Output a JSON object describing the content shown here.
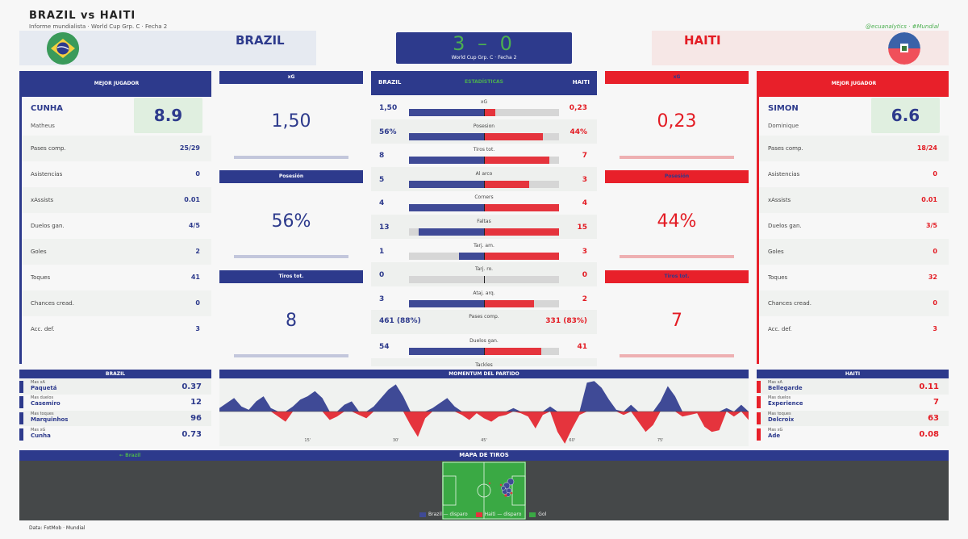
{
  "header": {
    "title": "BRAZIL  vs  HAITI",
    "subtitle": "Informe mundialista  ·  World Cup Grp. C  ·  Fecha 2",
    "handle": "@ecuanalytics · #Mundial"
  },
  "home": {
    "name": "BRAZIL",
    "color": "#2d3a8c"
  },
  "away": {
    "name": "HAITI",
    "color": "#e31b23"
  },
  "score": {
    "text": "3 – 0",
    "subtitle": "World Cup Grp. C  ·  Fecha 2"
  },
  "best_home": {
    "head": "MEJOR JUGADOR",
    "last": "CUNHA",
    "first": "Matheus",
    "rating": "8.9",
    "rows": [
      {
        "label": "Pases comp.",
        "value": "25/29"
      },
      {
        "label": "Asistencias",
        "value": "0"
      },
      {
        "label": "xAssists",
        "value": "0.01"
      },
      {
        "label": "Duelos gan.",
        "value": "4/5"
      },
      {
        "label": "Goles",
        "value": "2"
      },
      {
        "label": "Toques",
        "value": "41"
      },
      {
        "label": "Chances cread.",
        "value": "0"
      },
      {
        "label": "Acc. def.",
        "value": "3"
      }
    ]
  },
  "best_away": {
    "head": "MEJOR JUGADOR",
    "last": "SIMON",
    "first": "Dominique",
    "rating": "6.6",
    "rows": [
      {
        "label": "Pases comp.",
        "value": "18/24"
      },
      {
        "label": "Asistencias",
        "value": "0"
      },
      {
        "label": "xAssists",
        "value": "0.01"
      },
      {
        "label": "Duelos gan.",
        "value": "3/5"
      },
      {
        "label": "Goles",
        "value": "0"
      },
      {
        "label": "Toques",
        "value": "32"
      },
      {
        "label": "Chances cread.",
        "value": "0"
      },
      {
        "label": "Acc. def.",
        "value": "3"
      }
    ]
  },
  "metrics_home": [
    {
      "head": "xG",
      "value": "1,50"
    },
    {
      "head": "Posesión",
      "value": "56%"
    },
    {
      "head": "Tiros tot.",
      "value": "8"
    }
  ],
  "metrics_away": [
    {
      "head": "xG",
      "value": "0,23"
    },
    {
      "head": "Posesión",
      "value": "44%"
    },
    {
      "head": "Tiros tot.",
      "value": "7"
    }
  ],
  "stats": {
    "head_left": "BRAZIL",
    "head_center": "ESTADÍSTICAS",
    "head_right": "HAITI",
    "rows": [
      {
        "name": "xG",
        "home": "1,50",
        "away": "0,23",
        "hv": 1.5,
        "av": 0.23,
        "bar": true
      },
      {
        "name": "Posesion",
        "home": "56%",
        "away": "44%",
        "hv": 56,
        "av": 44,
        "bar": true
      },
      {
        "name": "Tiros tot.",
        "home": "8",
        "away": "7",
        "hv": 8,
        "av": 7,
        "bar": true
      },
      {
        "name": "Al arco",
        "home": "5",
        "away": "3",
        "hv": 5,
        "av": 3,
        "bar": true
      },
      {
        "name": "Corners",
        "home": "4",
        "away": "4",
        "hv": 4,
        "av": 4,
        "bar": true
      },
      {
        "name": "Faltas",
        "home": "13",
        "away": "15",
        "hv": 13,
        "av": 15,
        "bar": true
      },
      {
        "name": "Tarj. am.",
        "home": "1",
        "away": "3",
        "hv": 1,
        "av": 3,
        "bar": true
      },
      {
        "name": "Tarj. ro.",
        "home": "0",
        "away": "0",
        "hv": 0,
        "av": 0,
        "bar": true
      },
      {
        "name": "Ataj. arq.",
        "home": "3",
        "away": "2",
        "hv": 3,
        "av": 2,
        "bar": true
      },
      {
        "name": "Pases comp.",
        "home": "461 (88%)",
        "away": "331 (83%)",
        "hv": 461,
        "av": 331,
        "bar": false
      },
      {
        "name": "Duelos gan.",
        "home": "54",
        "away": "41",
        "hv": 54,
        "av": 41,
        "bar": true
      },
      {
        "name": "Tackles",
        "home": "",
        "away": "",
        "hv": 0,
        "av": 0,
        "bar": false
      }
    ]
  },
  "leaders_home": {
    "head": "BRAZIL",
    "rows": [
      {
        "cat": "Mas xA",
        "name": "Paquetá",
        "value": "0.37"
      },
      {
        "cat": "Mas duelos",
        "name": "Casemiro",
        "value": "12"
      },
      {
        "cat": "Mas toques",
        "name": "Marquinhos",
        "value": "96"
      },
      {
        "cat": "Mas xG",
        "name": "Cunha",
        "value": "0.73"
      }
    ]
  },
  "leaders_away": {
    "head": "HAITI",
    "rows": [
      {
        "cat": "Mas xA",
        "name": "Bellegarde",
        "value": "0.11"
      },
      {
        "cat": "Mas duelos",
        "name": "Experience",
        "value": "7"
      },
      {
        "cat": "Mas toques",
        "name": "Delcroix",
        "value": "63"
      },
      {
        "cat": "Mas xG",
        "name": "Ade",
        "value": "0.08"
      }
    ]
  },
  "momentum": {
    "head": "MOMENTUM DEL PARTIDO",
    "ticks": [
      "15'",
      "30'",
      "45'",
      "60'",
      "75'"
    ],
    "tick_minutes": [
      15,
      30,
      45,
      60,
      75
    ],
    "minutes": 90,
    "values": [
      2,
      5,
      8,
      3,
      1,
      6,
      9,
      2,
      -3,
      -6,
      3,
      7,
      9,
      12,
      8,
      -5,
      -3,
      4,
      6,
      -2,
      -4,
      3,
      8,
      13,
      16,
      9,
      -8,
      -15,
      -4,
      2,
      5,
      8,
      3,
      -2,
      -5,
      -1,
      -4,
      -6,
      -3,
      -2,
      2,
      -1,
      -3,
      -10,
      -2,
      3,
      -12,
      -19,
      -10,
      -2,
      17,
      18,
      14,
      7,
      1,
      -2,
      4,
      -6,
      -12,
      -8,
      6,
      15,
      9,
      -3,
      -2,
      -1,
      -9,
      -12,
      -11,
      2,
      -3,
      4,
      -5
    ],
    "colors": {
      "home": "#3f4a96",
      "away": "#e5343d"
    }
  },
  "shots": {
    "head": "MAPA DE TIROS",
    "left_label": "← Brazil",
    "legend": [
      "Brazil — disparo",
      "Haiti — disparo",
      "Gol"
    ]
  },
  "source": "Data: FotMob · Mundial"
}
